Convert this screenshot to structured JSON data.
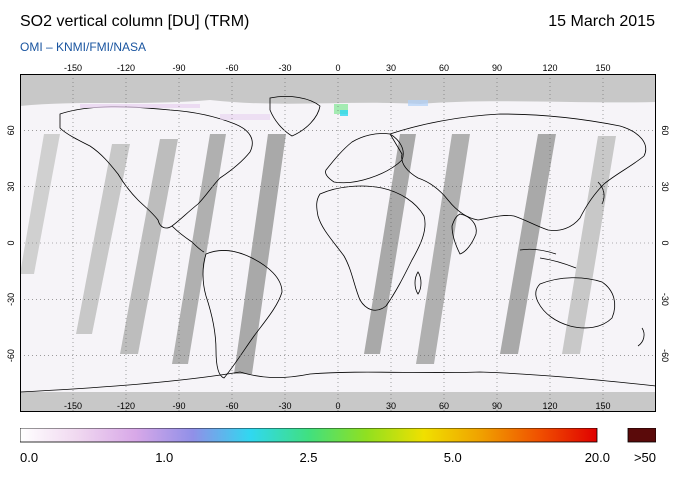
{
  "header": {
    "title": "SO2 vertical column [DU] (TRM)",
    "date": "15 March 2015",
    "credit": "OMI  –  KNMI/FMI/NASA"
  },
  "map": {
    "projection": "equirectangular",
    "lon_range": [
      -180,
      180
    ],
    "lat_range": [
      -90,
      90
    ],
    "lon_ticks": [
      "-150",
      "-120",
      "-90",
      "-60",
      "-30",
      "0",
      "30",
      "60",
      "90",
      "120",
      "150"
    ],
    "lat_ticks": [
      "60",
      "30",
      "0",
      "-30",
      "-60"
    ],
    "colors": {
      "no_data": "#c8c8c8",
      "swath_gap": "#a8a8a8",
      "background": "#f6f4f8",
      "coast": "#000000"
    }
  },
  "colorbar": {
    "labels": [
      "0.0",
      "1.0",
      "2.5",
      "5.0",
      "20.0",
      ">50"
    ],
    "overflow_color": "#5a0a0a",
    "stops": [
      "#ffffff",
      "#f0d8f0",
      "#d8a8e8",
      "#9090e8",
      "#30d8f0",
      "#40e080",
      "#90e020",
      "#f0e000",
      "#f0a000",
      "#f05000",
      "#e00000"
    ]
  }
}
